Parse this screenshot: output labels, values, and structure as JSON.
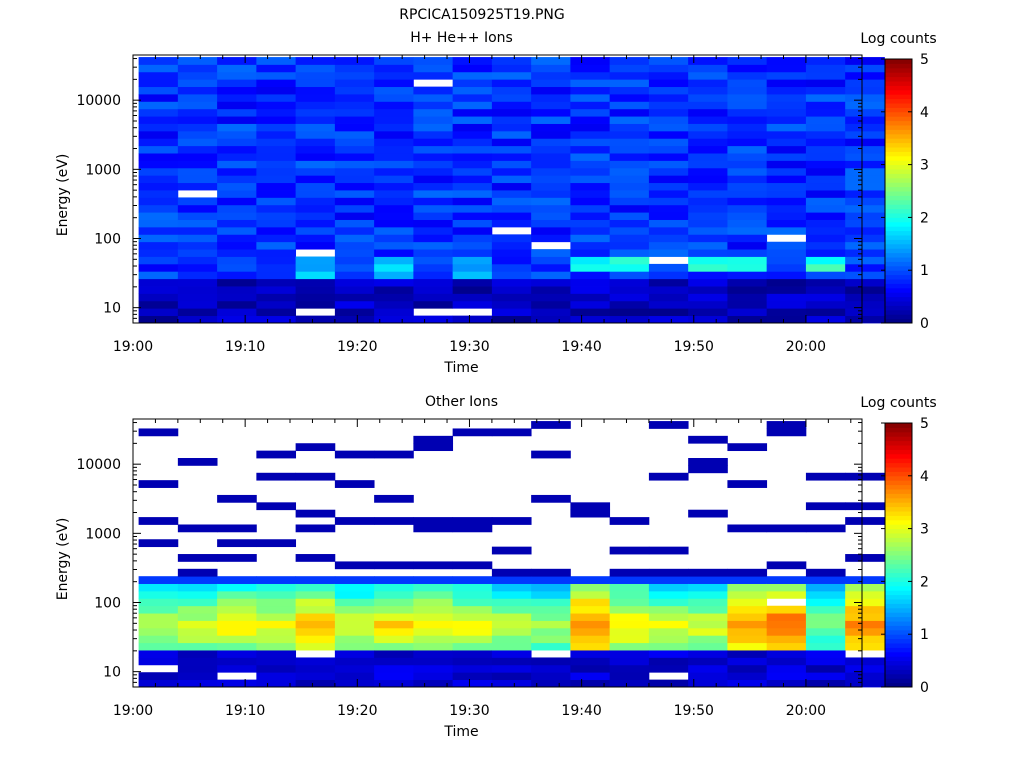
{
  "figure_title": "RPCICA150925T19.PNG",
  "colormap": [
    "#00007f",
    "#0000ff",
    "#007fff",
    "#00ffff",
    "#7fff7f",
    "#ffff00",
    "#ff7f00",
    "#ff0000",
    "#7f0000"
  ],
  "chart_data": [
    {
      "type": "heatmap",
      "title": "H+ He++ Ions",
      "xlabel": "Time",
      "ylabel": "Energy (eV)",
      "x_ticks": [
        "19:00",
        "19:10",
        "19:20",
        "19:30",
        "19:40",
        "19:50",
        "20:00"
      ],
      "x_range_minutes": [
        0,
        65
      ],
      "y_scale": "log",
      "y_range": [
        6,
        45000
      ],
      "y_ticks": [
        {
          "value": 10,
          "label": "10"
        },
        {
          "value": 100,
          "label": "100"
        },
        {
          "value": 1000,
          "label": "1000"
        },
        {
          "value": 10000,
          "label": "10000"
        }
      ],
      "colorbar": {
        "label": "Log counts",
        "range": [
          0,
          5
        ],
        "ticks": [
          "0",
          "1",
          "2",
          "3",
          "4",
          "5"
        ]
      },
      "time_columns": 19,
      "energy_range": [
        6,
        42000
      ],
      "energy_bins": 36,
      "background_log_counts": 0.85,
      "grid": false,
      "legend": "colorbar right",
      "hotspots": [
        {
          "columns": [
            11,
            12,
            14,
            15,
            17
          ],
          "energy": [
            30,
            60
          ],
          "log_counts": 2.0
        },
        {
          "columns": [
            4,
            6,
            8
          ],
          "energy": [
            25,
            50
          ],
          "log_counts": 1.6
        },
        {
          "columns": [
            0,
            1,
            2,
            3,
            4,
            5,
            6,
            7,
            8,
            9,
            10,
            11,
            12,
            13,
            14,
            15,
            16,
            17,
            18
          ],
          "energy": [
            6,
            25
          ],
          "log_counts": 0.3
        }
      ],
      "empty_bins": [
        {
          "column": 1,
          "energy": 420
        },
        {
          "column": 4,
          "energy": 70
        },
        {
          "column": 4,
          "energy": 8
        },
        {
          "column": 7,
          "energy": 17000
        },
        {
          "column": 7,
          "energy": 8
        },
        {
          "column": 8,
          "energy": 9
        },
        {
          "column": 9,
          "energy": 140
        },
        {
          "column": 10,
          "energy": 80
        },
        {
          "column": 13,
          "energy": 50
        },
        {
          "column": 16,
          "energy": 90
        }
      ]
    },
    {
      "type": "heatmap",
      "title": "Other Ions",
      "xlabel": "Time",
      "ylabel": "Energy (eV)",
      "x_ticks": [
        "19:00",
        "19:10",
        "19:20",
        "19:30",
        "19:40",
        "19:50",
        "20:00"
      ],
      "x_range_minutes": [
        0,
        65
      ],
      "y_scale": "log",
      "y_range": [
        6,
        45000
      ],
      "y_ticks": [
        {
          "value": 10,
          "label": "10"
        },
        {
          "value": 100,
          "label": "100"
        },
        {
          "value": 1000,
          "label": "1000"
        },
        {
          "value": 10000,
          "label": "10000"
        }
      ],
      "colorbar": {
        "label": "Log counts",
        "range": [
          0,
          5
        ],
        "ticks": [
          "0",
          "1",
          "2",
          "3",
          "4",
          "5"
        ]
      },
      "time_columns": 19,
      "energy_range": [
        6,
        42000
      ],
      "energy_bins": 36,
      "grid": false,
      "legend": "colorbar right",
      "filled_energy_range": [
        6,
        250
      ],
      "peak_energy_range": [
        30,
        70
      ],
      "peak_log_counts": [
        2.9,
        3.0,
        3.2,
        3.1,
        3.5,
        3.0,
        3.3,
        3.3,
        3.1,
        3.0,
        2.8,
        3.9,
        3.3,
        3.0,
        3.0,
        3.8,
        4.0,
        2.6,
        3.8
      ],
      "sparse_energies": [
        [
          30000,
          5200,
          1500,
          700
        ],
        [
          10500,
          1100,
          500,
          300
        ],
        [
          3500,
          1200,
          800,
          400
        ],
        [
          15000,
          6000,
          2800,
          700
        ],
        [
          18000,
          7500,
          1900,
          1200,
          500
        ],
        [
          14000,
          5000,
          1500,
          350
        ],
        [
          15000,
          3400,
          1400,
          350
        ],
        [
          24000,
          20000,
          1700,
          1100,
          350
        ],
        [
          26000,
          1600,
          1200,
          350
        ],
        [
          28000,
          1700,
          600,
          280
        ],
        [
          34000,
          13000,
          3300,
          300
        ],
        [
          2500,
          1800
        ],
        [
          1500,
          550,
          300
        ],
        [
          33000,
          7500,
          600,
          250
        ],
        [
          25000,
          11000,
          9000,
          2000,
          300
        ],
        [
          19000,
          5000,
          1100,
          250
        ],
        [
          40000,
          30000,
          1300,
          370,
          220
        ],
        [
          6000,
          2500,
          1100,
          250
        ],
        [
          6300,
          2500,
          1500,
          500
        ]
      ],
      "empty_bins": [
        {
          "column": 0,
          "energy": 12
        },
        {
          "column": 2,
          "energy": 8
        },
        {
          "column": 4,
          "energy": 20
        },
        {
          "column": 10,
          "energy": 18
        },
        {
          "column": 13,
          "energy": 8
        },
        {
          "column": 16,
          "energy": 110
        },
        {
          "column": 18,
          "energy": 18
        }
      ]
    }
  ]
}
